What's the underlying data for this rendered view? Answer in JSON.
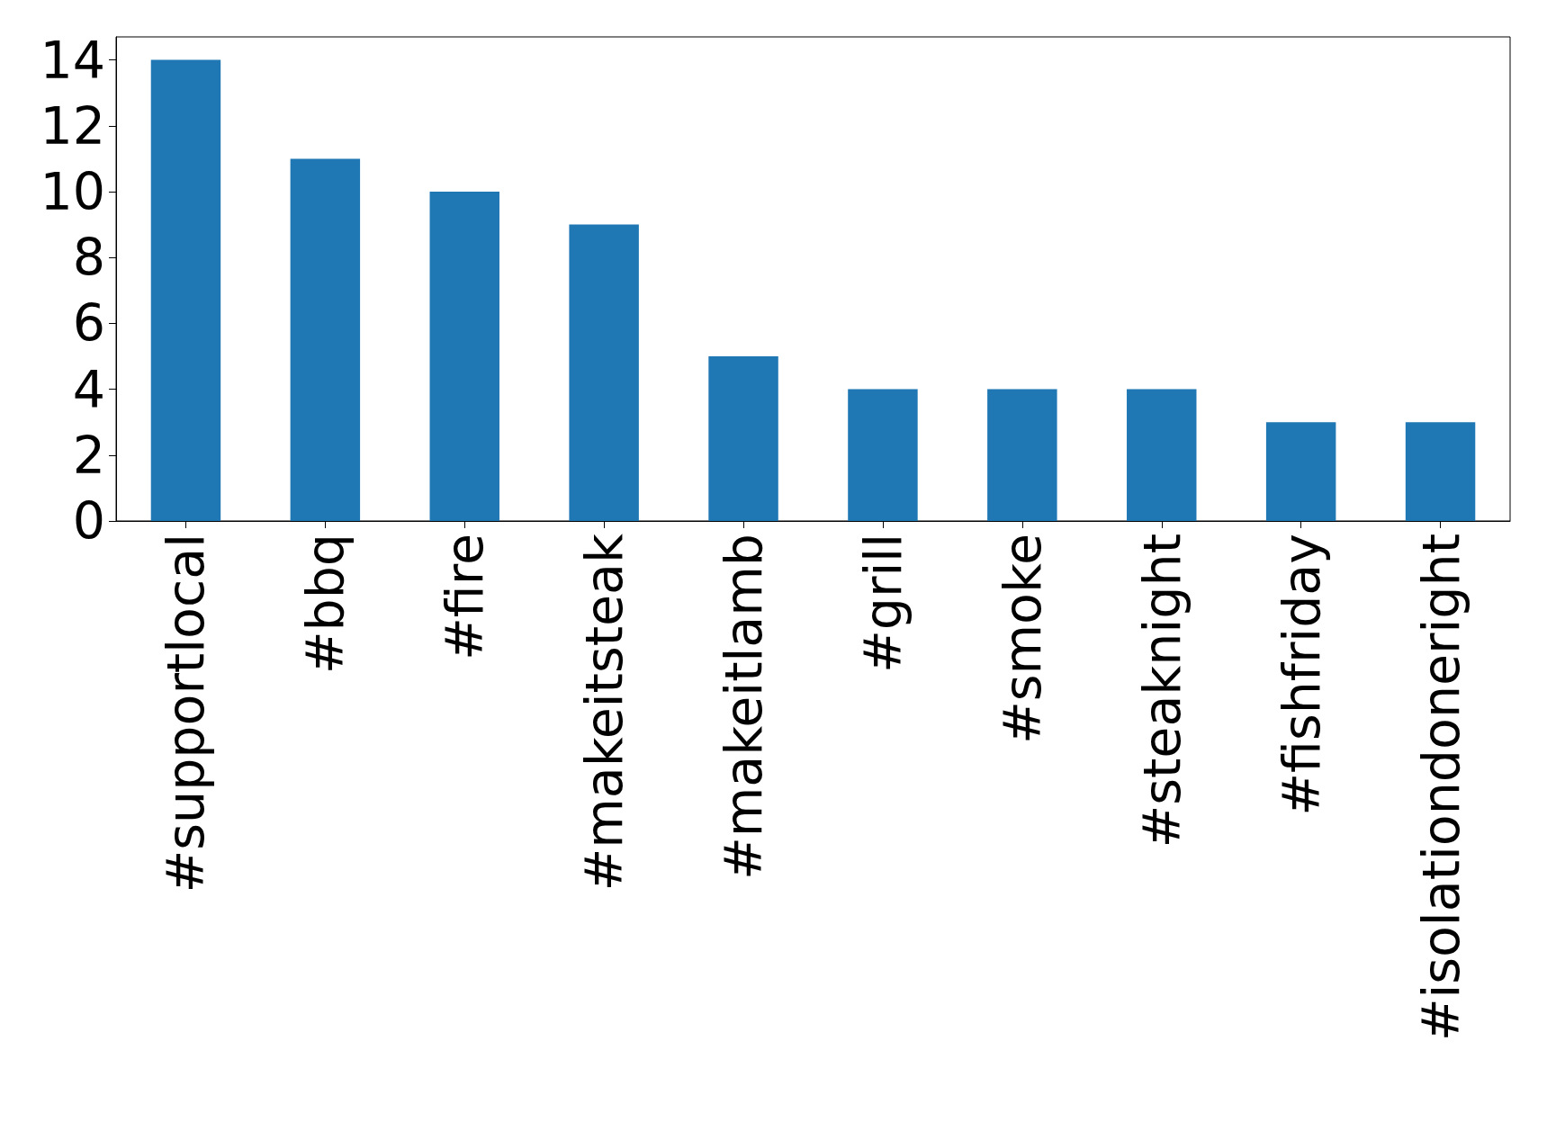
{
  "chart_data": {
    "type": "bar",
    "categories": [
      "#supportlocal",
      "#bbq",
      "#fire",
      "#makeitsteak",
      "#makeitlamb",
      "#grill",
      "#smoke",
      "#steaknight",
      "#fishfriday",
      "#isolationdoneright"
    ],
    "values": [
      14,
      11,
      10,
      9,
      5,
      4,
      4,
      4,
      3,
      3
    ],
    "color": "#1f77b4",
    "ylim": [
      0,
      14.7
    ],
    "yticks": [
      0,
      2,
      4,
      6,
      8,
      10,
      12,
      14
    ],
    "grid": false
  }
}
